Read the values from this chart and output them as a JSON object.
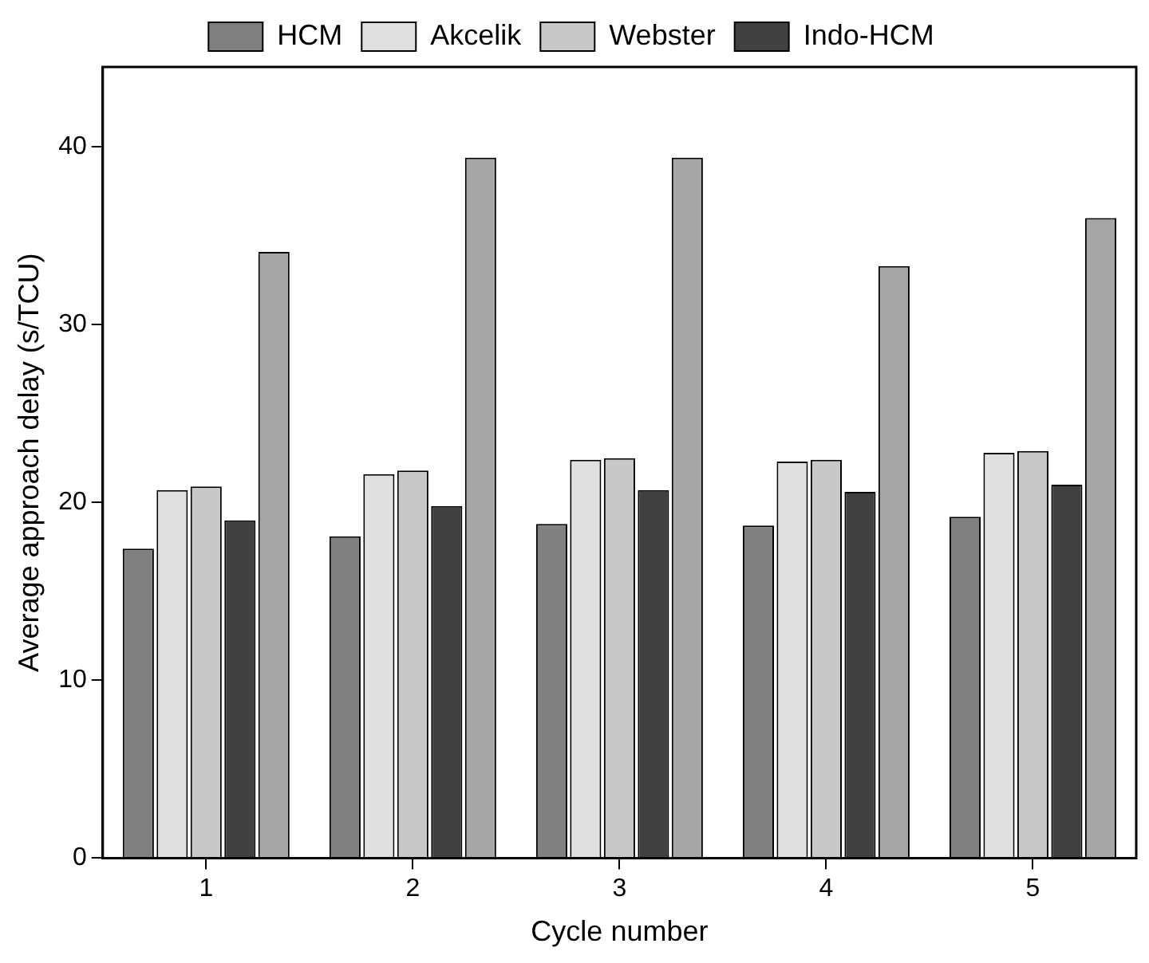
{
  "chart_data": {
    "type": "bar",
    "xlabel": "Cycle number",
    "ylabel": "Average approach delay (s/TCU)",
    "categories": [
      "1",
      "2",
      "3",
      "4",
      "5"
    ],
    "series": [
      {
        "name": "HCM",
        "color": "#808080",
        "values": [
          17.4,
          18.1,
          18.8,
          18.7,
          19.2
        ]
      },
      {
        "name": "Akcelik",
        "color": "#e0e0e0",
        "values": [
          20.7,
          21.6,
          22.4,
          22.3,
          22.8
        ]
      },
      {
        "name": "Webster",
        "color": "#c8c8c8",
        "values": [
          20.9,
          21.8,
          22.5,
          22.4,
          22.9
        ]
      },
      {
        "name": "Indo-HCM",
        "color": "#404040",
        "values": [
          19.0,
          19.8,
          20.7,
          20.6,
          21.0
        ]
      },
      {
        "color": "#a6a6a6",
        "values": [
          34.1,
          39.4,
          39.4,
          33.3,
          36.0
        ]
      }
    ],
    "ylim": [
      0,
      44.5
    ],
    "yticks": [
      0,
      10,
      20,
      30,
      40
    ],
    "grid": false,
    "legend": "top"
  }
}
